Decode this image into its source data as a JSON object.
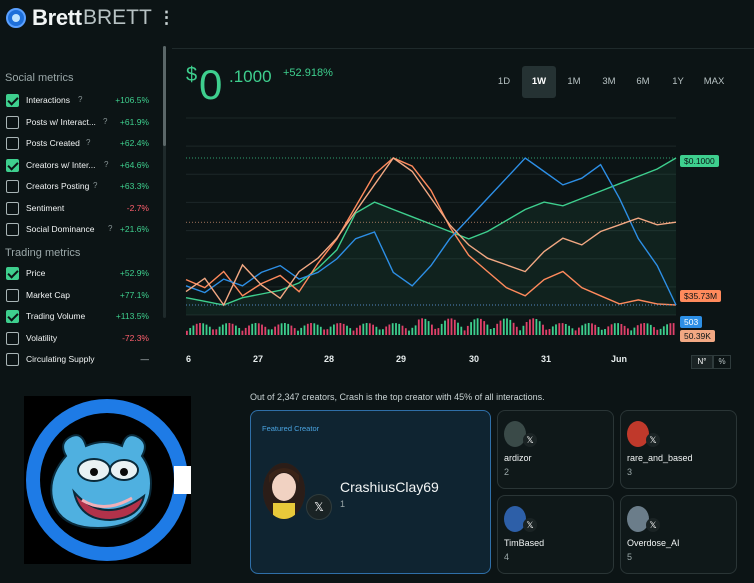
{
  "header": {
    "name": "Brett",
    "ticker": "BRETT",
    "menu_glyph": "⋮"
  },
  "sidebar": {
    "social_title": "Social metrics",
    "social": [
      {
        "label": "Interactions",
        "checked": true,
        "change": "+106.5%",
        "trend": "pos"
      },
      {
        "label": "Posts w/ Interact...",
        "checked": false,
        "change": "+61.9%",
        "trend": "pos"
      },
      {
        "label": "Posts Created",
        "checked": false,
        "change": "+62.4%",
        "trend": "pos"
      },
      {
        "label": "Creators w/ Inter...",
        "checked": true,
        "change": "+64.6%",
        "trend": "pos"
      },
      {
        "label": "Creators Posting",
        "checked": false,
        "change": "+63.3%",
        "trend": "pos"
      },
      {
        "label": "Sentiment",
        "checked": false,
        "change": "-2.7%",
        "trend": "neg"
      },
      {
        "label": "Social Dominance",
        "checked": false,
        "change": "+21.6%",
        "trend": "pos"
      }
    ],
    "trading_title": "Trading metrics",
    "trading": [
      {
        "label": "Price",
        "checked": true,
        "change": "+52.9%",
        "trend": "pos"
      },
      {
        "label": "Market Cap",
        "checked": false,
        "change": "+77.1%",
        "trend": "pos"
      },
      {
        "label": "Trading Volume",
        "checked": true,
        "change": "+113.5%",
        "trend": "pos"
      },
      {
        "label": "Volatility",
        "checked": false,
        "change": "-72.3%",
        "trend": "neg"
      },
      {
        "label": "Circulating Supply",
        "checked": false,
        "change": "—",
        "trend": "neu"
      }
    ],
    "help_glyph": "?"
  },
  "price": {
    "currency": "$",
    "whole": "0",
    "fraction": ".1000",
    "change": "+52.918%"
  },
  "timeframes": [
    "1D",
    "1W",
    "1M",
    "3M",
    "6M",
    "1Y",
    "MAX"
  ],
  "active_timeframe": "1W",
  "chart_data": {
    "type": "line",
    "x_ticks": [
      "6",
      "27",
      "28",
      "29",
      "30",
      "31",
      "Jun"
    ],
    "series": [
      {
        "name": "Price",
        "color": "#3ecf8e",
        "last_label": "$0.1000",
        "values": [
          0.062,
          0.061,
          0.06,
          0.062,
          0.063,
          0.064,
          0.066,
          0.07,
          0.075,
          0.085,
          0.088,
          0.086,
          0.084,
          0.082,
          0.08,
          0.078,
          0.08,
          0.083,
          0.086,
          0.088,
          0.087,
          0.089,
          0.091,
          0.093,
          0.095,
          0.097,
          0.1
        ]
      },
      {
        "name": "Trading Volume",
        "color": "#ff8a5c",
        "last_label": "$35.73M",
        "values": [
          42,
          40,
          44,
          38,
          41,
          43,
          39,
          46,
          52,
          60,
          68,
          72,
          70,
          64,
          55,
          48,
          44,
          40,
          38,
          42,
          44,
          40,
          38,
          36,
          37,
          36,
          35.73
        ]
      },
      {
        "name": "Interactions",
        "color": "#2d8fe6",
        "last_label": "503",
        "values": [
          560,
          540,
          580,
          560,
          600,
          620,
          580,
          600,
          640,
          700,
          720,
          600,
          560,
          620,
          700,
          760,
          820,
          880,
          940,
          900,
          860,
          880,
          920,
          820,
          700,
          620,
          503
        ]
      },
      {
        "name": "Creators w/ Interactions",
        "color": "#f2a883",
        "last_label": "50.39K",
        "values": [
          40,
          42,
          38,
          44,
          41,
          39,
          43,
          45,
          48,
          52,
          56,
          60,
          58,
          54,
          50,
          47,
          45,
          44,
          43,
          46,
          48,
          47,
          49,
          50,
          51,
          50,
          50.39
        ]
      }
    ],
    "grid": true
  },
  "chart_toggle": {
    "n": "N°",
    "pct": "%"
  },
  "creators": {
    "summary": "Out of 2,347 creators, Crash is the top creator with 45% of all interactions.",
    "featured_label": "Featured Creator",
    "featured": {
      "name": "CrashiusClay69",
      "rank": "1"
    },
    "x_glyph": "𝕏",
    "others": [
      {
        "name": "ardizor",
        "rank": "2",
        "avatar_color": "#3a4a48"
      },
      {
        "name": "rare_and_based",
        "rank": "3",
        "avatar_color": "#c0392b"
      },
      {
        "name": "TimBased",
        "rank": "4",
        "avatar_color": "#2d5fa8"
      },
      {
        "name": "Overdose_AI",
        "rank": "5",
        "avatar_color": "#6b7d8a"
      }
    ]
  }
}
